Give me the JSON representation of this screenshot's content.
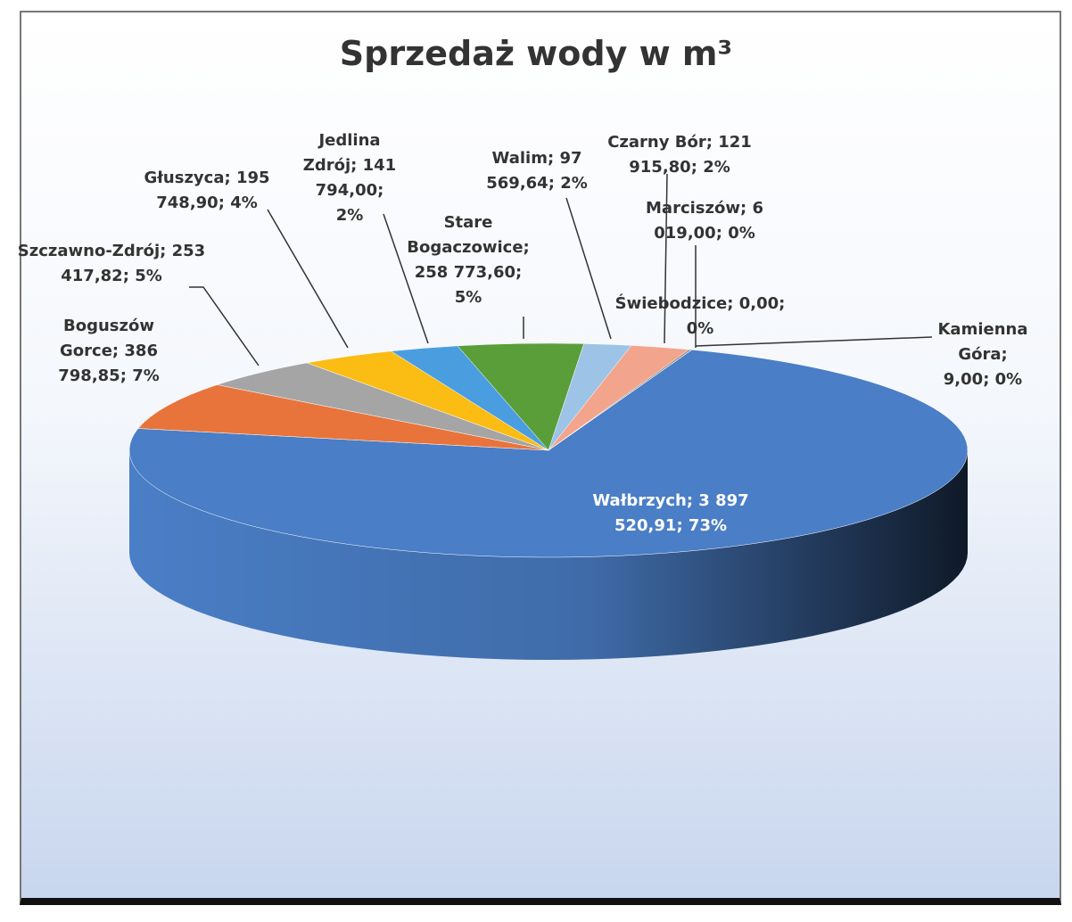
{
  "chart_data": {
    "type": "pie",
    "title": "Sprzedaż wody w m³",
    "categories": [
      "Wałbrzych",
      "Boguszów Gorce",
      "Szczawno-Zdrój",
      "Głuszyca",
      "Jedlina Zdrój",
      "Stare Bogaczowice",
      "Walim",
      "Czarny Bór",
      "Marciszów",
      "Świebodzice",
      "Kamienna Góra"
    ],
    "values": [
      3897520.91,
      386798.85,
      253417.82,
      195748.9,
      141794.0,
      258773.6,
      97569.64,
      121915.8,
      6019.0,
      0.0,
      9.0
    ],
    "value_labels": [
      "3 897 520,91",
      "386 798,85",
      "253 417,82",
      "195 748,90",
      "141 794,00",
      "258 773,60",
      "97 569,64",
      "121 915,80",
      "6 019,00",
      "0,00",
      "9,00"
    ],
    "percents": [
      73,
      7,
      5,
      4,
      2,
      5,
      2,
      2,
      0,
      0,
      0
    ],
    "percent_labels": [
      "73%",
      "7%",
      "5%",
      "4%",
      "2%",
      "5%",
      "2%",
      "2%",
      "0%",
      "0%",
      "0%"
    ],
    "colors": [
      "#4a7ec6",
      "#e8743b",
      "#a5a5a5",
      "#fbbc13",
      "#4a9ee0",
      "#5a9e3a",
      "#9dc3e6",
      "#f2a58c",
      "#8a8a8a",
      "#6f9fd8",
      "#c9a46a"
    ]
  }
}
